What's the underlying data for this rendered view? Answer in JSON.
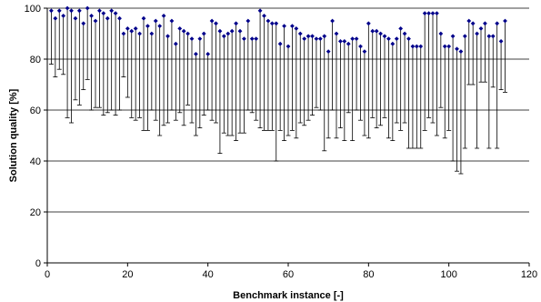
{
  "chart_data": {
    "type": "scatter",
    "title": "",
    "xlabel": "Benchmark instance [-]",
    "ylabel": "Solution quality [%]",
    "xlim": [
      0,
      120
    ],
    "ylim": [
      0,
      100
    ],
    "xticks": [
      0,
      20,
      40,
      60,
      80,
      100,
      120
    ],
    "yticks": [
      0,
      20,
      40,
      60,
      80,
      100
    ],
    "grid": "horizontal",
    "legend": "none",
    "colors": {
      "marker": "#00008B",
      "range_line": "#000000",
      "grid": "#000000"
    },
    "series": [
      {
        "x": [
          1,
          2,
          3,
          4,
          5,
          6,
          7,
          8,
          9,
          10,
          11,
          12,
          13,
          14,
          15,
          16,
          17,
          18,
          19,
          20,
          21,
          22,
          23,
          24,
          25,
          26,
          27,
          28,
          29,
          30,
          31,
          32,
          33,
          34,
          35,
          36,
          37,
          38,
          39,
          40,
          41,
          42,
          43,
          44,
          45,
          46,
          47,
          48,
          49,
          50,
          51,
          52,
          53,
          54,
          55,
          56,
          57,
          58,
          59,
          60,
          61,
          62,
          63,
          64,
          65,
          66,
          67,
          68,
          69,
          70,
          71,
          72,
          73,
          74,
          75,
          76,
          77,
          78,
          79,
          80,
          81,
          82,
          83,
          84,
          85,
          86,
          87,
          88,
          89,
          90,
          91,
          92,
          93,
          94,
          95,
          96,
          97,
          98,
          99,
          100,
          101,
          102,
          103,
          104,
          105,
          106,
          107,
          108,
          109,
          110,
          111,
          112,
          113,
          114
        ],
        "values": [
          99,
          96,
          99,
          97,
          100,
          99,
          96,
          99,
          94,
          100,
          97,
          95,
          99,
          98,
          96,
          99,
          98,
          96,
          90,
          92,
          91,
          92,
          90,
          96,
          93,
          90,
          95,
          93,
          97,
          89,
          95,
          86,
          92,
          91,
          90,
          88,
          82,
          88,
          90,
          82,
          95,
          94,
          91,
          89,
          90,
          91,
          94,
          91,
          88,
          95,
          88,
          88,
          99,
          97,
          95,
          94,
          94,
          86,
          93,
          85,
          93,
          92,
          90,
          88,
          89,
          89,
          88,
          88,
          89,
          83,
          95,
          90,
          87,
          87,
          86,
          88,
          88,
          85,
          83,
          94,
          91,
          91,
          90,
          89,
          88,
          86,
          88,
          92,
          90,
          88,
          85,
          85,
          85,
          98,
          98,
          98,
          98,
          90,
          85,
          85,
          89,
          84,
          83,
          89,
          95,
          94,
          90,
          92,
          94,
          89,
          89,
          94,
          87,
          95
        ],
        "min": [
          78,
          73,
          76,
          74,
          57,
          55,
          64,
          62,
          68,
          72,
          60,
          61,
          61,
          58,
          59,
          60,
          58,
          60,
          73,
          65,
          57,
          56,
          57,
          52,
          52,
          60,
          56,
          50,
          54,
          55,
          60,
          56,
          59,
          54,
          62,
          55,
          50,
          53,
          58,
          60,
          56,
          55,
          43,
          51,
          50,
          50,
          48,
          51,
          51,
          60,
          59,
          56,
          53,
          52,
          52,
          52,
          40,
          52,
          48,
          50,
          52,
          49,
          55,
          54,
          56,
          58,
          61,
          60,
          44,
          49,
          60,
          49,
          53,
          48,
          59,
          48,
          60,
          56,
          50,
          49,
          57,
          53,
          54,
          57,
          49,
          48,
          55,
          52,
          55,
          45,
          45,
          45,
          45,
          52,
          57,
          55,
          50,
          61,
          49,
          52,
          40,
          36,
          35,
          45,
          70,
          70,
          45,
          71,
          71,
          45,
          69,
          45,
          68,
          67
        ]
      }
    ]
  }
}
